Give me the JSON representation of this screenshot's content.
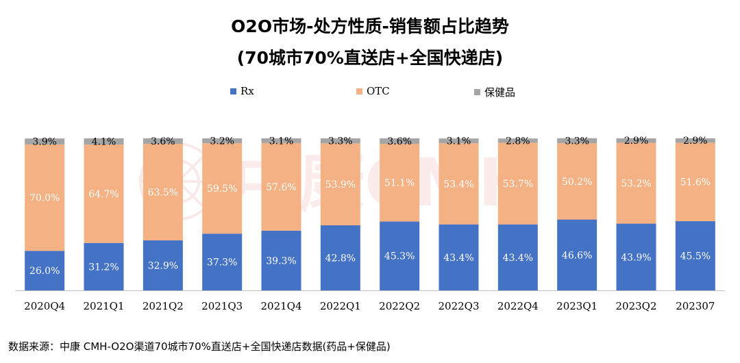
{
  "chart_data": {
    "type": "bar",
    "stacked": true,
    "normalized": true,
    "title_line1": "O2O市场-处方性质-销售额占比趋势",
    "title_line2": "(70城市70%直送店+全国快递店)",
    "categories": [
      "2020Q4",
      "2021Q1",
      "2021Q2",
      "2021Q3",
      "2021Q4",
      "2022Q1",
      "2022Q2",
      "2022Q3",
      "2022Q4",
      "2023Q1",
      "2023Q2",
      "202307"
    ],
    "series": [
      {
        "name": "Rx",
        "color": "#4472C4",
        "values": [
          26.0,
          31.2,
          32.9,
          37.3,
          39.3,
          42.8,
          45.3,
          43.4,
          43.4,
          46.6,
          43.9,
          45.5
        ]
      },
      {
        "name": "OTC",
        "color": "#F4B183",
        "values": [
          70.0,
          64.7,
          63.5,
          59.5,
          57.6,
          53.9,
          51.1,
          53.4,
          53.7,
          50.2,
          53.2,
          51.6
        ]
      },
      {
        "name": "保健品",
        "color": "#A5A5A5",
        "values": [
          3.9,
          4.1,
          3.6,
          3.2,
          3.1,
          3.3,
          3.6,
          3.1,
          2.8,
          3.3,
          2.9,
          2.9
        ]
      }
    ],
    "labels": {
      "Rx": [
        "26.0%",
        "31.2%",
        "32.9%",
        "37.3%",
        "39.3%",
        "42.8%",
        "45.3%",
        "43.4%",
        "43.4%",
        "46.6%",
        "43.9%",
        "45.5%"
      ],
      "OTC": [
        "70.0%",
        "64.7%",
        "63.5%",
        "59.5%",
        "57.6%",
        "53.9%",
        "51.1%",
        "53.4%",
        "53.7%",
        "50.2%",
        "53.2%",
        "51.6%"
      ],
      "保健品": [
        "3.9%",
        "4.1%",
        "3.6%",
        "3.2%",
        "3.1%",
        "3.3%",
        "3.6%",
        "3.1%",
        "2.8%",
        "3.3%",
        "2.9%",
        "2.9%"
      ]
    },
    "ylim": [
      0,
      100
    ],
    "legend_position": "top",
    "grid": false
  },
  "source_text": "数据来源：中康 CMH-O2O渠道70城市70%直送店+全国快递店数据(药品+保健品)",
  "watermark_text": "中康CMH",
  "colors": {
    "label_on_dark": "#ffffff",
    "axis": "#bfbfbf"
  }
}
